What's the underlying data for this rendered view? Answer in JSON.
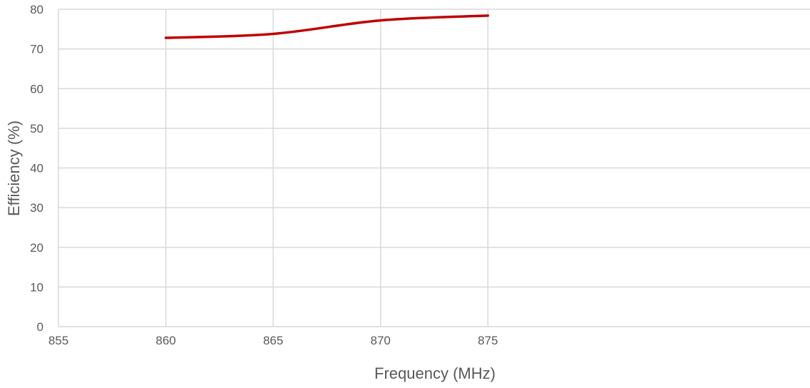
{
  "chart_data": {
    "type": "scatter",
    "title": "",
    "xlabel": "Frequency (MHz)",
    "ylabel": "Efficiency (%)",
    "xlim": [
      855,
      890
    ],
    "ylim": [
      0,
      80
    ],
    "x_ticks": [
      855,
      860,
      865,
      870,
      875
    ],
    "y_ticks": [
      0,
      10,
      20,
      30,
      40,
      50,
      60,
      70,
      80
    ],
    "grid": true,
    "legend": "none",
    "series": [
      {
        "x": [
          860,
          865,
          870,
          875
        ],
        "y": [
          72.8,
          73.8,
          77.2,
          78.4
        ],
        "color": "#c00000",
        "smooth": true,
        "markers": false
      }
    ]
  }
}
